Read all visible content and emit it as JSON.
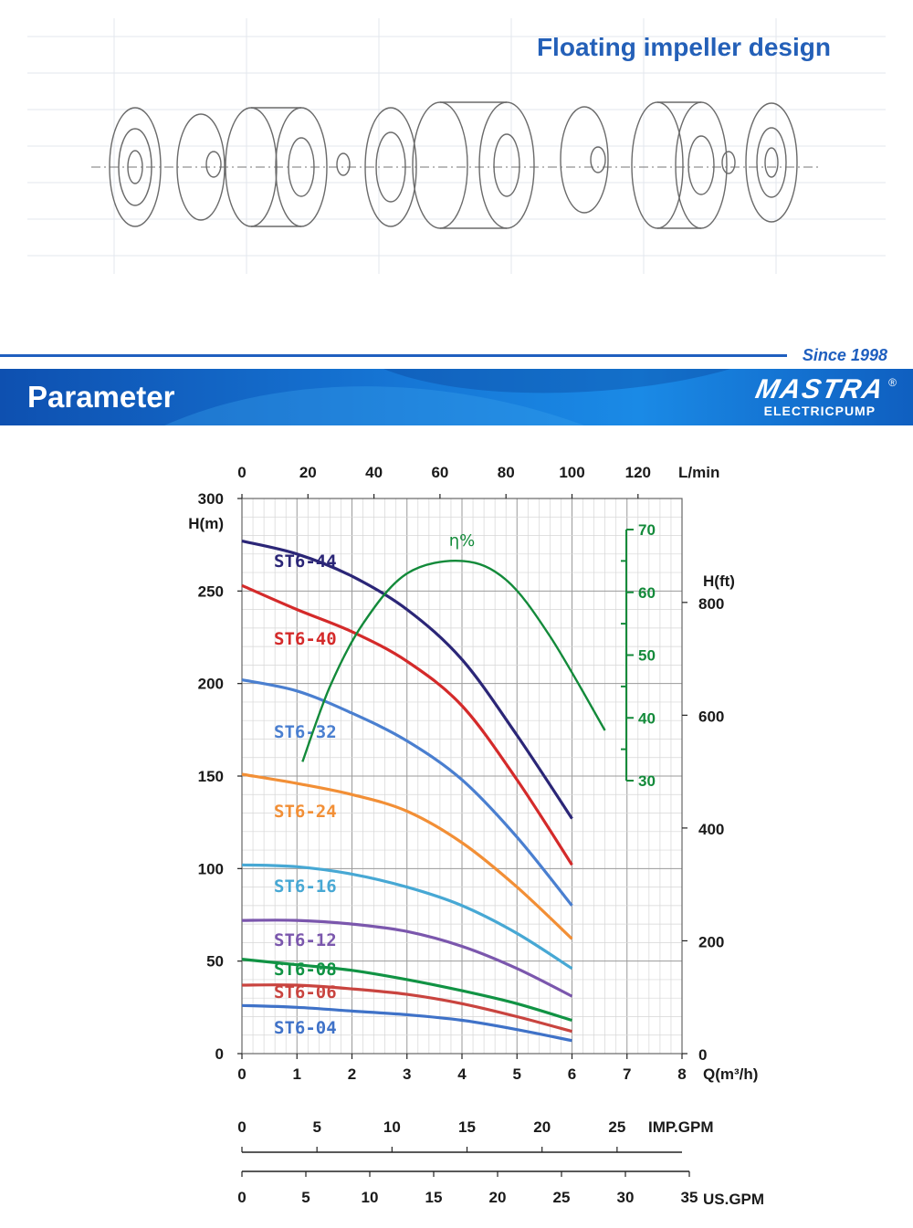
{
  "top_panel": {
    "title": "Floating impeller design"
  },
  "header": {
    "since": "Since 1998"
  },
  "banner": {
    "title": "Parameter",
    "brand_logo": "MASTRA",
    "brand_sub": "ELECTRICPUMP",
    "brand_reg": "®"
  },
  "colors": {
    "accent": "#1f5fbf",
    "efficiency": "#138a3a"
  },
  "chart_data": {
    "type": "line",
    "xlabel": "Q(m³/h)",
    "x_ticks": [
      0,
      1,
      2,
      3,
      4,
      5,
      6,
      7,
      8
    ],
    "xlim": [
      0,
      8
    ],
    "ylabel": "H(m)",
    "y_ticks": [
      0,
      50,
      100,
      150,
      200,
      250,
      300
    ],
    "ylim": [
      0,
      300
    ],
    "top_axis": {
      "label": "L/min",
      "ticks": [
        0,
        20,
        40,
        60,
        80,
        100,
        120
      ]
    },
    "right_axis": {
      "label": "H(ft)",
      "ticks": [
        0,
        200,
        400,
        600,
        800
      ]
    },
    "efficiency_axis": {
      "label": "η%",
      "ticks": [
        30,
        40,
        50,
        60,
        70
      ]
    },
    "imp_gpm_axis": {
      "label": "IMP.GPM",
      "ticks": [
        0,
        5,
        10,
        15,
        20,
        25
      ]
    },
    "us_gpm_axis": {
      "label": "US.GPM",
      "ticks": [
        0,
        5,
        10,
        15,
        20,
        25,
        30,
        35
      ]
    },
    "grid": true,
    "series": [
      {
        "name": "ST6-44",
        "color": "#2b2677",
        "x": [
          0,
          1,
          2,
          3,
          4,
          5,
          6
        ],
        "y": [
          277,
          270,
          258,
          240,
          213,
          172,
          127
        ]
      },
      {
        "name": "ST6-40",
        "color": "#d42a2a",
        "x": [
          0,
          1,
          2,
          3,
          4,
          5,
          6
        ],
        "y": [
          253,
          240,
          228,
          212,
          188,
          148,
          102
        ]
      },
      {
        "name": "ST6-32",
        "color": "#4a7fd0",
        "x": [
          0,
          1,
          2,
          3,
          4,
          5,
          6
        ],
        "y": [
          202,
          196,
          184,
          169,
          148,
          117,
          80
        ]
      },
      {
        "name": "ST6-24",
        "color": "#f28f36",
        "x": [
          0,
          1,
          2,
          3,
          4,
          5,
          6
        ],
        "y": [
          151,
          146,
          140,
          131,
          114,
          90,
          62
        ]
      },
      {
        "name": "ST6-16",
        "color": "#47a8d4",
        "x": [
          0,
          1,
          2,
          3,
          4,
          5,
          6
        ],
        "y": [
          102,
          101,
          97,
          90,
          80,
          65,
          46
        ]
      },
      {
        "name": "ST6-12",
        "color": "#7b57ad",
        "x": [
          0,
          1,
          2,
          3,
          4,
          5,
          6
        ],
        "y": [
          72,
          72,
          70,
          66,
          58,
          46,
          31
        ]
      },
      {
        "name": "ST6-08",
        "color": "#119344",
        "x": [
          0,
          1,
          2,
          3,
          4,
          5,
          6
        ],
        "y": [
          51,
          48,
          45,
          40,
          34,
          27,
          18
        ]
      },
      {
        "name": "ST6-06",
        "color": "#c9443f",
        "x": [
          0,
          1,
          2,
          3,
          4,
          5,
          6
        ],
        "y": [
          37,
          37,
          35,
          32,
          27,
          20,
          12
        ]
      },
      {
        "name": "ST6-04",
        "color": "#3f72c8",
        "x": [
          0,
          1,
          2,
          3,
          4,
          5,
          6
        ],
        "y": [
          26,
          25,
          23,
          21,
          18,
          13,
          7
        ]
      }
    ],
    "efficiency": {
      "name": "η%",
      "color": "#138a3a",
      "x": [
        1.1,
        1.6,
        2.2,
        3,
        4,
        4.8,
        5.6,
        6.6
      ],
      "y": [
        33,
        45,
        55,
        63,
        65,
        62,
        53,
        38
      ]
    }
  }
}
